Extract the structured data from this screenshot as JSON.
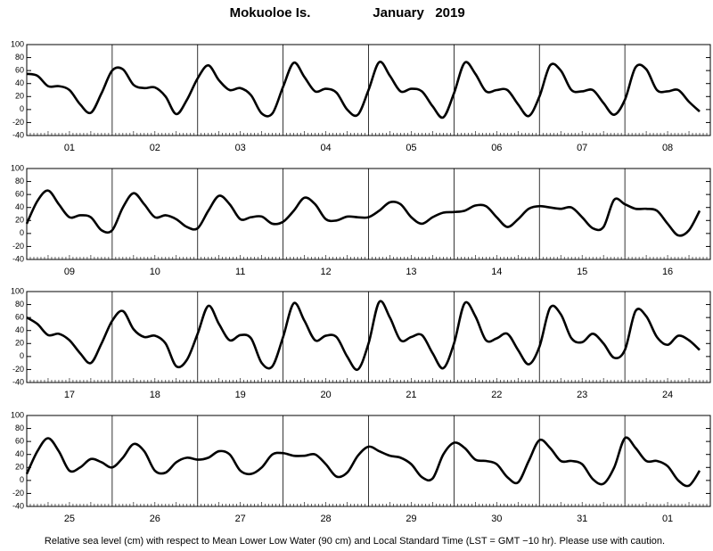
{
  "title": "Mokuoloe Is.",
  "subtitle": "January   2019",
  "note": "Relative sea level (cm) with respect to Mean Lower Low Water (90 cm) and Local Standard Time (LST = GMT −10 hr). Please use with caution.",
  "chart_data": [
    {
      "type": "line",
      "color": "#000000",
      "ylim": [
        -40,
        100
      ],
      "yticks": [
        -40,
        -20,
        0,
        20,
        40,
        60,
        80,
        100
      ],
      "categories": [
        "01",
        "02",
        "03",
        "04",
        "05",
        "06",
        "07",
        "08"
      ],
      "values": [
        [
          55,
          52,
          36,
          36,
          30,
          8,
          -5,
          25
        ],
        [
          60,
          62,
          38,
          33,
          34,
          20,
          -7,
          15
        ],
        [
          48,
          68,
          45,
          30,
          33,
          22,
          -6,
          -6
        ],
        [
          35,
          72,
          50,
          28,
          32,
          26,
          0,
          -8
        ],
        [
          30,
          73,
          52,
          28,
          32,
          28,
          5,
          -12
        ],
        [
          25,
          72,
          55,
          28,
          30,
          30,
          8,
          -10
        ],
        [
          20,
          68,
          60,
          30,
          28,
          30,
          10,
          -8
        ],
        [
          15,
          65,
          62,
          30,
          28,
          30,
          12,
          -3
        ]
      ]
    },
    {
      "type": "line",
      "color": "#000000",
      "ylim": [
        -40,
        100
      ],
      "yticks": [
        -40,
        -20,
        0,
        20,
        40,
        60,
        80,
        100
      ],
      "categories": [
        "09",
        "10",
        "11",
        "12",
        "13",
        "14",
        "15",
        "16"
      ],
      "values": [
        [
          15,
          50,
          66,
          45,
          25,
          28,
          25,
          5
        ],
        [
          5,
          40,
          62,
          45,
          25,
          28,
          22,
          10
        ],
        [
          8,
          35,
          58,
          45,
          22,
          25,
          26,
          15
        ],
        [
          18,
          35,
          55,
          45,
          22,
          20,
          26,
          25
        ],
        [
          25,
          35,
          48,
          45,
          25,
          15,
          25,
          32
        ],
        [
          33,
          35,
          43,
          42,
          25,
          10,
          22,
          38
        ],
        [
          42,
          40,
          38,
          40,
          25,
          8,
          10,
          52
        ],
        [
          45,
          38,
          38,
          35,
          15,
          -3,
          5,
          35
        ]
      ]
    },
    {
      "type": "line",
      "color": "#000000",
      "ylim": [
        -40,
        100
      ],
      "yticks": [
        -40,
        -20,
        0,
        20,
        40,
        60,
        80,
        100
      ],
      "categories": [
        "17",
        "18",
        "19",
        "20",
        "21",
        "22",
        "23",
        "24"
      ],
      "values": [
        [
          60,
          50,
          33,
          35,
          25,
          5,
          -10,
          20
        ],
        [
          55,
          70,
          42,
          30,
          32,
          20,
          -15,
          -5
        ],
        [
          35,
          78,
          50,
          25,
          33,
          28,
          -10,
          -15
        ],
        [
          30,
          82,
          55,
          25,
          32,
          30,
          0,
          -20
        ],
        [
          20,
          84,
          60,
          25,
          30,
          33,
          5,
          -18
        ],
        [
          20,
          82,
          62,
          25,
          28,
          35,
          10,
          -12
        ],
        [
          15,
          75,
          65,
          28,
          22,
          35,
          20,
          -2
        ],
        [
          10,
          70,
          62,
          30,
          18,
          32,
          25,
          10
        ]
      ]
    },
    {
      "type": "line",
      "color": "#000000",
      "ylim": [
        -40,
        100
      ],
      "yticks": [
        -40,
        -20,
        0,
        20,
        40,
        60,
        80,
        100
      ],
      "categories": [
        "25",
        "26",
        "27",
        "28",
        "29",
        "30",
        "31",
        "01"
      ],
      "values": [
        [
          10,
          45,
          65,
          45,
          15,
          20,
          33,
          28
        ],
        [
          20,
          35,
          56,
          45,
          15,
          12,
          28,
          35
        ],
        [
          32,
          35,
          45,
          40,
          15,
          10,
          20,
          40
        ],
        [
          42,
          38,
          38,
          40,
          25,
          6,
          12,
          38
        ],
        [
          52,
          45,
          38,
          35,
          25,
          5,
          3,
          40
        ],
        [
          58,
          50,
          32,
          30,
          25,
          5,
          -3,
          30
        ],
        [
          62,
          50,
          30,
          30,
          25,
          2,
          -5,
          20
        ],
        [
          65,
          50,
          30,
          30,
          22,
          0,
          -8,
          15
        ]
      ]
    }
  ]
}
